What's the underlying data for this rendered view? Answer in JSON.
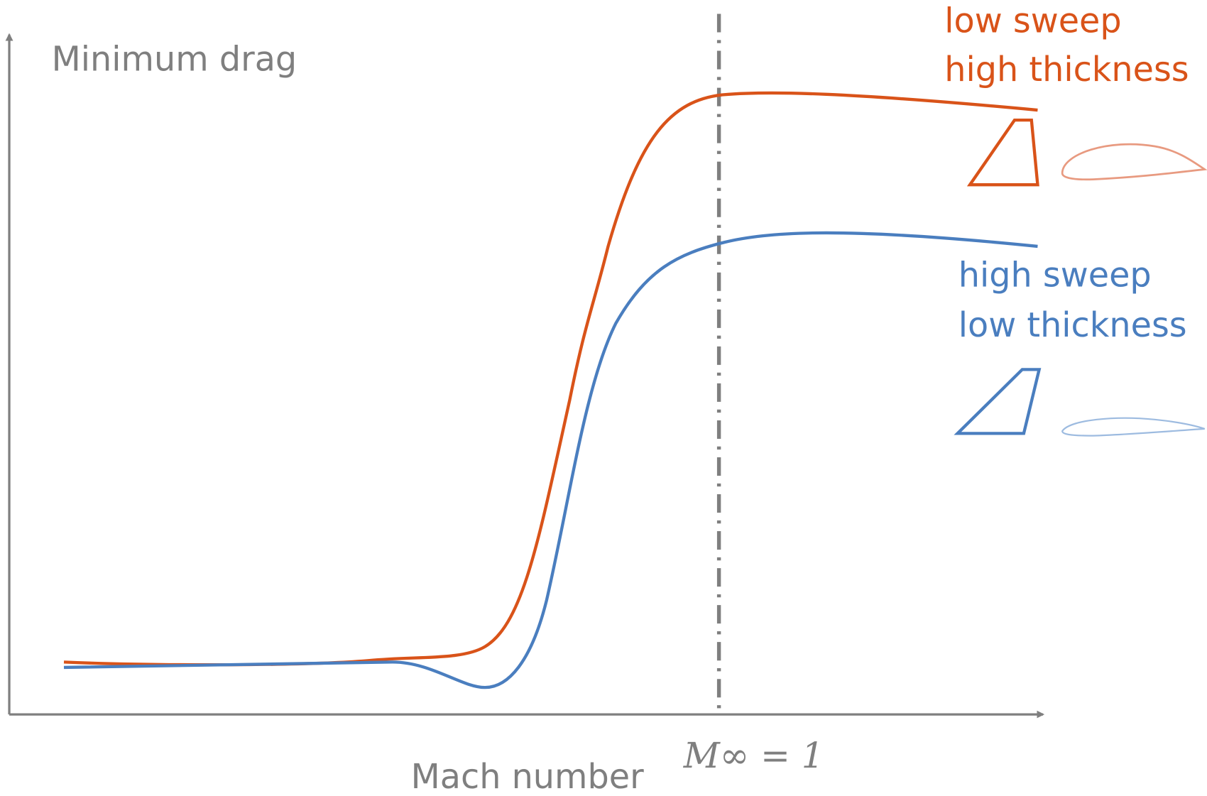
{
  "axes": {
    "y_label": "Minimum drag",
    "x_label": "Mach number",
    "marker_label": "M∞ = 1"
  },
  "curves": [
    {
      "label_lines": [
        "low sweep",
        "high thickness"
      ]
    },
    {
      "label_lines": [
        "high sweep",
        "low thickness"
      ]
    }
  ]
}
